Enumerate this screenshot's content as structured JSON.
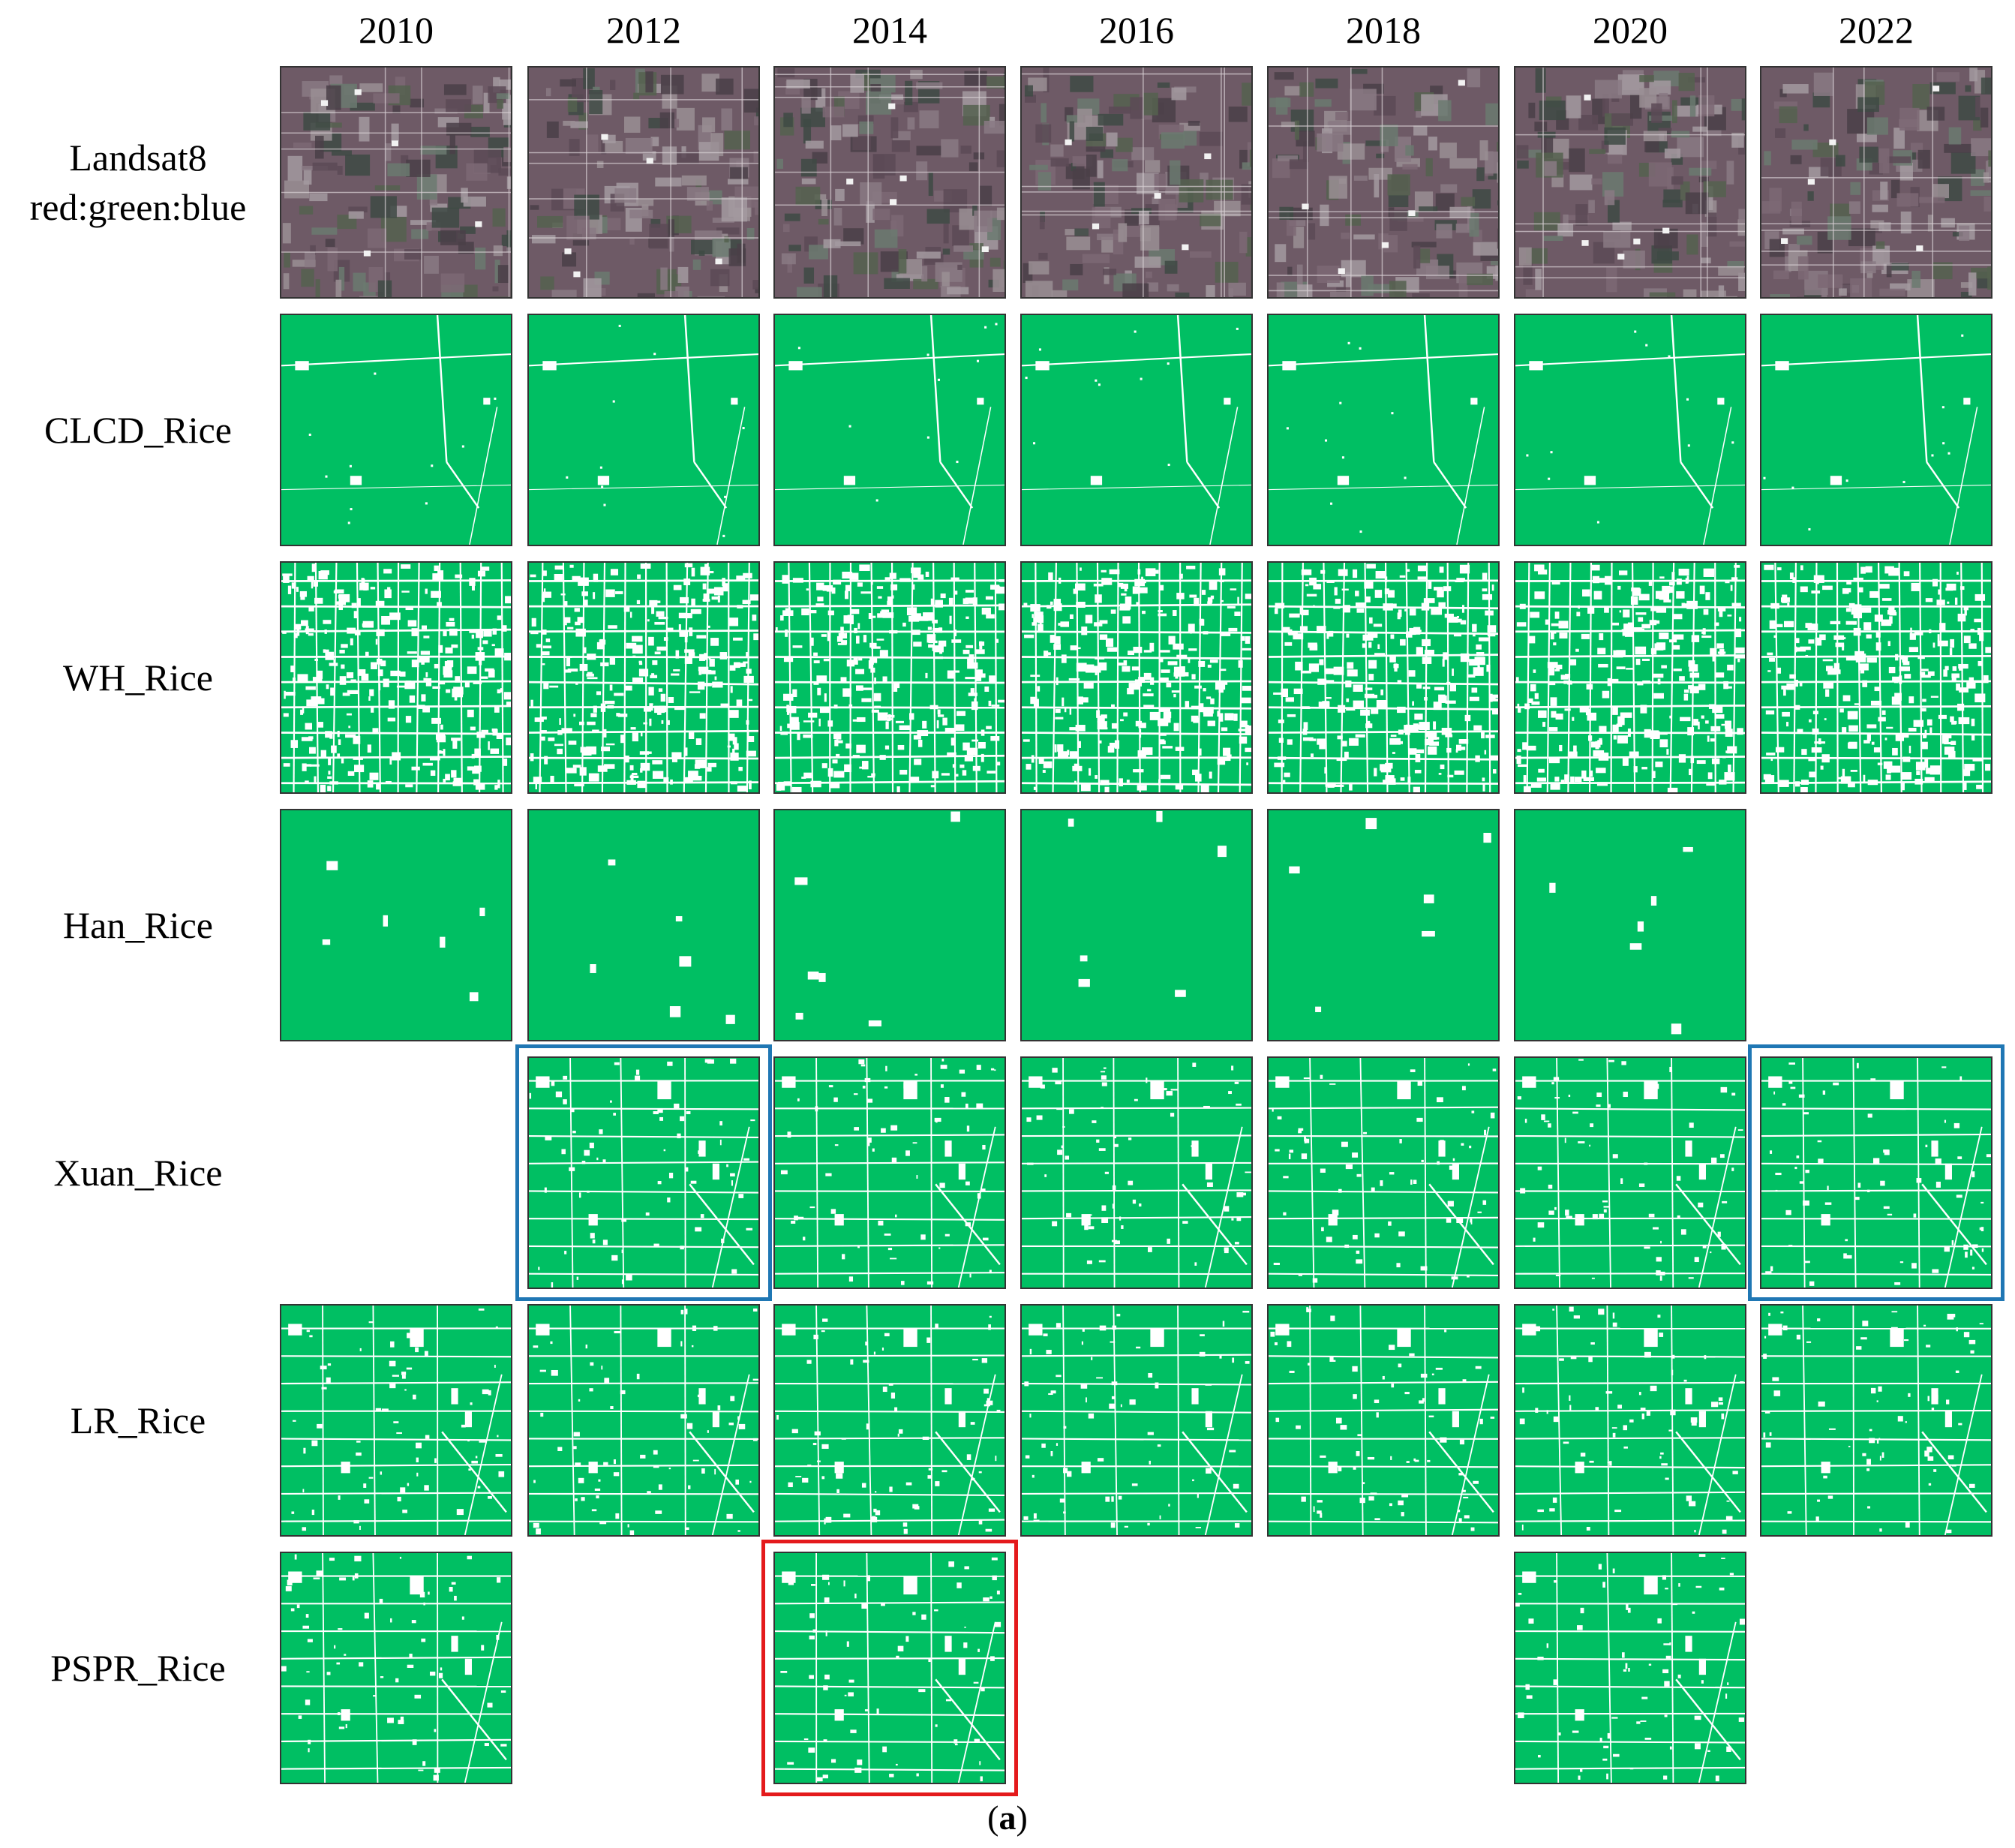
{
  "years": [
    "2010",
    "2012",
    "2014",
    "2016",
    "2018",
    "2020",
    "2022"
  ],
  "rows": [
    {
      "label": [
        "Landsat8",
        "red:green:blue"
      ],
      "kind": "satellite",
      "available": [
        "2010",
        "2012",
        "2014",
        "2016",
        "2018",
        "2020",
        "2022"
      ]
    },
    {
      "label": [
        "CLCD_Rice"
      ],
      "kind": "sparse",
      "available": [
        "2010",
        "2012",
        "2014",
        "2016",
        "2018",
        "2020",
        "2022"
      ]
    },
    {
      "label": [
        "WH_Rice"
      ],
      "kind": "dense",
      "available": [
        "2010",
        "2012",
        "2014",
        "2016",
        "2018",
        "2020",
        "2022"
      ]
    },
    {
      "label": [
        "Han_Rice"
      ],
      "kind": "blocks",
      "available": [
        "2010",
        "2012",
        "2014",
        "2016",
        "2018",
        "2020"
      ]
    },
    {
      "label": [
        "Xuan_Rice"
      ],
      "kind": "fields",
      "available": [
        "2012",
        "2014",
        "2016",
        "2018",
        "2020",
        "2022"
      ]
    },
    {
      "label": [
        "LR_Rice"
      ],
      "kind": "fields",
      "available": [
        "2010",
        "2012",
        "2014",
        "2016",
        "2018",
        "2020",
        "2022"
      ]
    },
    {
      "label": [
        "PSPR_Rice"
      ],
      "kind": "fields",
      "available": [
        "2010",
        "2014",
        "2020"
      ]
    }
  ],
  "highlights": [
    {
      "row": "Xuan_Rice",
      "year": "2012",
      "color": "#1f77b4"
    },
    {
      "row": "Xuan_Rice",
      "year": "2022",
      "color": "#1f77b4"
    },
    {
      "row": "PSPR_Rice",
      "year": "2014",
      "color": "#e41a1c"
    }
  ],
  "colors": {
    "rice": "#00bf63",
    "nonrice": "#ffffff"
  },
  "caption": {
    "open": "(",
    "letter": "a",
    "close": ")"
  }
}
